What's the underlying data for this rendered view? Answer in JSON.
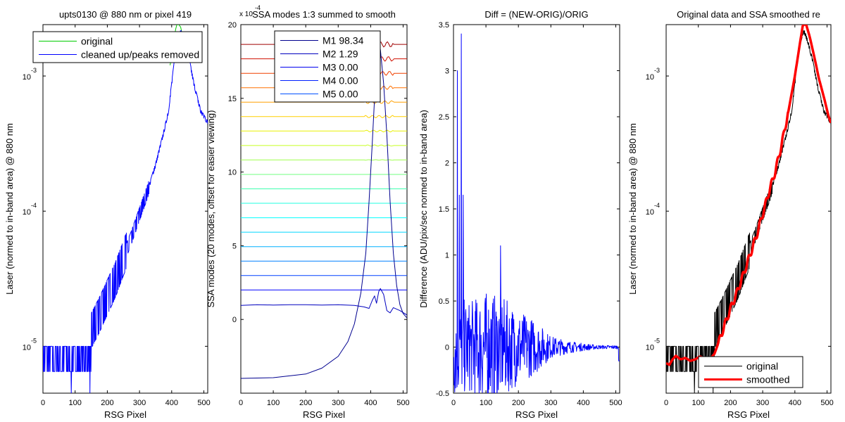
{
  "figure": {
    "background": "#ffffff"
  },
  "chart_data": [
    {
      "type": "line",
      "title": "upts0130 @ 880 nm or pixel 419",
      "xlabel": "RSG Pixel",
      "ylabel": "Laser (normed to in-band area) @ 880 nm",
      "xlim": [
        0,
        512
      ],
      "ylim": [
        4.5e-06,
        0.0024
      ],
      "yscale": "log",
      "xticks": [
        0,
        100,
        200,
        300,
        400,
        500
      ],
      "xtick_labels": [
        "0",
        "100",
        "200",
        "300",
        "400",
        "500"
      ],
      "yticks": [
        1e-05,
        0.0001,
        0.001
      ],
      "ytick_bases": [
        "10",
        "10",
        "10"
      ],
      "ytick_exps": [
        "-5",
        "-4",
        "-3"
      ],
      "legend": {
        "placement": "top",
        "entries": [
          {
            "name": "original",
            "color": "#00cc00"
          },
          {
            "name": "cleaned up/peaks removed",
            "color": "#0000ff"
          }
        ]
      },
      "series": [
        {
          "name": "original",
          "color": "#00cc00",
          "x": [
            395,
            405,
            412,
            418,
            422,
            428,
            435,
            445
          ],
          "y": [
            0.0012,
            0.0016,
            0.0022,
            0.0025,
            0.0024,
            0.0023,
            0.0019,
            0.0015
          ]
        },
        {
          "name": "cleaned up/peaks removed",
          "color": "#0000ff",
          "x": [
            150,
            175,
            200,
            225,
            250,
            275,
            300,
            325,
            350,
            375,
            390,
            405,
            415,
            425,
            430,
            440,
            455,
            470,
            490,
            512
          ],
          "y": [
            1.3e-05,
            1.7e-05,
            2.3e-05,
            3.1e-05,
            4.5e-05,
            6.4e-05,
            9.5e-05,
            0.00014,
            0.00022,
            0.00038,
            0.00055,
            0.0011,
            0.0017,
            0.0021,
            0.0021,
            0.0018,
            0.0013,
            0.00085,
            0.00055,
            0.00045
          ],
          "noise_floor": {
            "x": [
              0,
              150
            ],
            "levels": [
              6.5e-06,
              1e-05
            ]
          }
        }
      ]
    },
    {
      "type": "line",
      "title": "SSA modes 1:3 summed to smooth",
      "multiplier": "x 10",
      "multiplier_exp": "-4",
      "xlabel": "RSG Pixel",
      "ylabel": "SSA modes (20 modes, offset for easier viewing)",
      "xlim": [
        0,
        512
      ],
      "ylim": [
        -5,
        20
      ],
      "xticks": [
        0,
        100,
        200,
        300,
        400,
        500
      ],
      "xtick_labels": [
        "0",
        "100",
        "200",
        "300",
        "400",
        "500"
      ],
      "yticks": [
        0,
        5,
        10,
        15,
        20
      ],
      "ytick_labels": [
        "0",
        "5",
        "10",
        "15",
        "20"
      ],
      "legend": {
        "placement": "top",
        "entries": [
          {
            "name": "M1 98.34",
            "color": "#00008f"
          },
          {
            "name": "M2 1.29",
            "color": "#0000bf"
          },
          {
            "name": "M3 0.00",
            "color": "#0000ef"
          },
          {
            "name": "M4 0.00",
            "color": "#0020ff"
          },
          {
            "name": "M5 0.00",
            "color": "#0050ff"
          }
        ]
      },
      "mode1": {
        "x": [
          0,
          100,
          200,
          250,
          300,
          330,
          350,
          370,
          385,
          395,
          405,
          412,
          418,
          422,
          425,
          430,
          440,
          450,
          460,
          470,
          480,
          490,
          500,
          512
        ],
        "y": [
          -4,
          -3.95,
          -3.7,
          -3.3,
          -2.5,
          -1.5,
          -0.3,
          1.8,
          4.5,
          8,
          12,
          15,
          17,
          18.2,
          18.6,
          18.3,
          16,
          12.5,
          8,
          4.5,
          2.3,
          1,
          0.4,
          0.1
        ]
      },
      "mode2": {
        "x": [
          0,
          50,
          100,
          150,
          200,
          250,
          300,
          350,
          380,
          395,
          405,
          412,
          418,
          425,
          430,
          440,
          450,
          460,
          470,
          490,
          512
        ],
        "y": [
          0.95,
          1.0,
          0.98,
          1.0,
          1.0,
          0.98,
          1.0,
          0.95,
          0.85,
          0.75,
          1.3,
          1.6,
          1.1,
          1.9,
          2.1,
          1.7,
          0.6,
          0.45,
          0.8,
          0.6,
          0.3
        ]
      },
      "offset_modes": {
        "count": 18,
        "start": 2,
        "step": 1,
        "spacing": 0.98,
        "colors": [
          "#0000ff",
          "#0040ff",
          "#0080ff",
          "#00b0ff",
          "#00d8ff",
          "#00ffff",
          "#20ffe0",
          "#40ffb0",
          "#70ff80",
          "#a0ff50",
          "#c8ff20",
          "#e8f000",
          "#ffd000",
          "#ffa000",
          "#ff7000",
          "#f04000",
          "#d01000",
          "#a00000"
        ]
      }
    },
    {
      "type": "line",
      "title": "Diff = (NEW-ORIG)/ORIG",
      "xlabel": "RSG Pixel",
      "ylabel": "Difference (ADU/pix/sec normed to in-band area)",
      "xlim": [
        0,
        512
      ],
      "ylim": [
        -0.5,
        3.5
      ],
      "xticks": [
        0,
        100,
        200,
        300,
        400,
        500
      ],
      "xtick_labels": [
        "0",
        "100",
        "200",
        "300",
        "400",
        "500"
      ],
      "yticks": [
        -0.5,
        0,
        0.5,
        1,
        1.5,
        2,
        2.5,
        3,
        3.5
      ],
      "ytick_labels": [
        "-0.5",
        "0",
        "0.5",
        "1",
        "1.5",
        "2",
        "2.5",
        "3",
        "3.5"
      ],
      "series": [
        {
          "name": "",
          "color": "#0000ff",
          "spikes": {
            "x": [
              12,
              18,
              24,
              30,
              145
            ],
            "y": [
              3.0,
              1.65,
              3.4,
              1.65,
              1.1
            ]
          },
          "envelope": {
            "x": [
              0,
              50,
              100,
              150,
              200,
              250,
              300,
              350,
              400,
              450,
              512
            ],
            "amp": [
              0.55,
              0.5,
              0.6,
              0.55,
              0.4,
              0.3,
              0.12,
              0.07,
              0.04,
              0.02,
              0.02
            ]
          }
        }
      ]
    },
    {
      "type": "line",
      "title": "Original data and SSA smoothed re",
      "xlabel": "RSG Pixel",
      "ylabel": "Laser (normed to in-band area) @ 880 nm",
      "xlim": [
        0,
        512
      ],
      "ylim": [
        4.5e-06,
        0.0024
      ],
      "yscale": "log",
      "xticks": [
        0,
        100,
        200,
        300,
        400,
        500
      ],
      "xtick_labels": [
        "0",
        "100",
        "200",
        "300",
        "400",
        "500"
      ],
      "yticks": [
        1e-05,
        0.0001,
        0.001
      ],
      "ytick_bases": [
        "10",
        "10",
        "10"
      ],
      "ytick_exps": [
        "-5",
        "-4",
        "-3"
      ],
      "legend": {
        "placement": "bottom",
        "entries": [
          {
            "name": "original",
            "color": "#000000"
          },
          {
            "name": "smoothed",
            "color": "#ff0000"
          }
        ]
      },
      "series": [
        {
          "name": "original",
          "color": "#000000",
          "x": [
            150,
            175,
            200,
            225,
            250,
            275,
            300,
            325,
            350,
            375,
            390,
            405,
            415,
            425,
            430,
            440,
            455,
            470,
            490,
            512
          ],
          "y": [
            1.3e-05,
            1.7e-05,
            2.3e-05,
            3.1e-05,
            4.5e-05,
            6.4e-05,
            9.5e-05,
            0.00014,
            0.00022,
            0.00038,
            0.00055,
            0.0011,
            0.0017,
            0.0021,
            0.0021,
            0.0018,
            0.0013,
            0.00085,
            0.00055,
            0.00045
          ],
          "noise_floor": {
            "x": [
              0,
              150
            ],
            "levels": [
              6.5e-06,
              1e-05
            ]
          }
        },
        {
          "name": "smoothed",
          "color": "#ff0000",
          "x": [
            0,
            10,
            20,
            30,
            45,
            60,
            75,
            90,
            105,
            120,
            135,
            150,
            165,
            180,
            200,
            220,
            240,
            260,
            280,
            300,
            320,
            340,
            360,
            380,
            400,
            415,
            425,
            435,
            445,
            460,
            475,
            490,
            505,
            512
          ],
          "y": [
            7.5e-06,
            7.3e-06,
            8e-06,
            8.5e-06,
            8e-06,
            8.2e-06,
            7.8e-06,
            8e-06,
            8.4e-06,
            8.2e-06,
            8e-06,
            8.8e-06,
            1.1e-05,
            1.4e-05,
            1.9e-05,
            2.5e-05,
            3.4e-05,
            4.7e-05,
            6.5e-05,
            9.5e-05,
            0.00014,
            0.0002,
            0.00032,
            0.00055,
            0.001,
            0.0017,
            0.0024,
            0.0024,
            0.002,
            0.0014,
            0.00095,
            0.0007,
            0.0005,
            0.00045
          ]
        }
      ]
    }
  ]
}
